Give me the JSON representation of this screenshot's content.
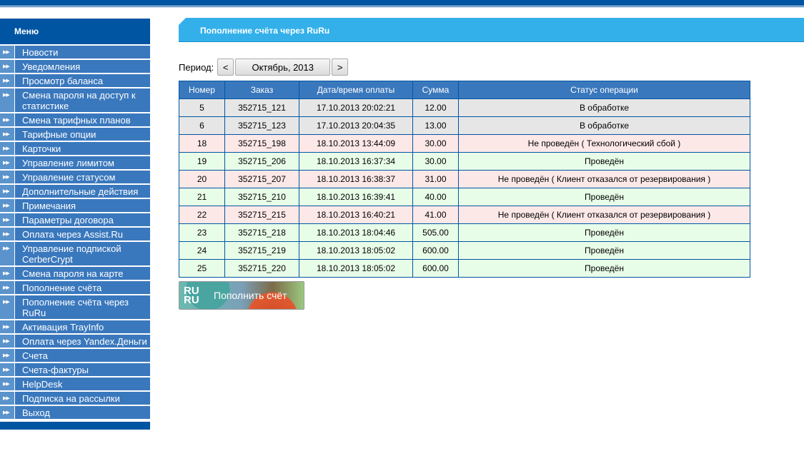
{
  "sidebar": {
    "title": "Меню",
    "items": [
      "Новости",
      "Уведомления",
      "Просмотр баланса",
      "Смена пароля на доступ к статистике",
      "Смена тарифных планов",
      "Тарифные опции",
      "Карточки",
      "Управление лимитом",
      "Управление статусом",
      "Дополнительные действия",
      "Примечания",
      "Параметры договора",
      "Оплата через Assist.Ru",
      "Управление подпиской CerberCrypt",
      "Смена пароля на карте",
      "Пополнение счёта",
      "Пополнение счёта через RuRu",
      "Активация TrayInfo",
      "Оплата через Yandex.Деньги",
      "Счета",
      "Счета-фактуры",
      "HelpDesk",
      "Подписка на рассылки",
      "Выход"
    ]
  },
  "page": {
    "title": "Пополнение счёта через RuRu"
  },
  "period": {
    "label": "Период:",
    "prev": "<",
    "value": "Октябрь, 2013",
    "next": ">"
  },
  "table": {
    "headers": [
      "Номер",
      "Заказ",
      "Дата/время оплаты",
      "Сумма",
      "Статус операции"
    ],
    "rows": [
      {
        "status_type": "gray",
        "cells": [
          "5",
          "352715_121",
          "17.10.2013 20:02:21",
          "12.00",
          "В обработке"
        ]
      },
      {
        "status_type": "gray",
        "cells": [
          "6",
          "352715_123",
          "17.10.2013 20:04:35",
          "13.00",
          "В обработке"
        ]
      },
      {
        "status_type": "pink",
        "cells": [
          "18",
          "352715_198",
          "18.10.2013 13:44:09",
          "30.00",
          "Не проведён ( Технологический сбой )"
        ]
      },
      {
        "status_type": "green",
        "cells": [
          "19",
          "352715_206",
          "18.10.2013 16:37:34",
          "30.00",
          "Проведён"
        ]
      },
      {
        "status_type": "pink",
        "cells": [
          "20",
          "352715_207",
          "18.10.2013 16:38:37",
          "31.00",
          "Не проведён ( Клиент отказался от резервирования )"
        ]
      },
      {
        "status_type": "green",
        "cells": [
          "21",
          "352715_210",
          "18.10.2013 16:39:41",
          "40.00",
          "Проведён"
        ]
      },
      {
        "status_type": "pink",
        "cells": [
          "22",
          "352715_215",
          "18.10.2013 16:40:21",
          "41.00",
          "Не проведён ( Клиент отказался от резервирования )"
        ]
      },
      {
        "status_type": "green",
        "cells": [
          "23",
          "352715_218",
          "18.10.2013 18:04:46",
          "505.00",
          "Проведён"
        ]
      },
      {
        "status_type": "green",
        "cells": [
          "24",
          "352715_219",
          "18.10.2013 18:05:02",
          "600.00",
          "Проведён"
        ]
      },
      {
        "status_type": "green",
        "cells": [
          "25",
          "352715_220",
          "18.10.2013 18:05:02",
          "600.00",
          "Проведён"
        ]
      }
    ]
  },
  "topup": {
    "logo": "RU RU",
    "label": "Пополнить счёт"
  },
  "colors": {
    "brand": "#0055a3",
    "menu_item": "#3a78bd",
    "banner": "#33b0ea",
    "row_pending": "#e6e6e6",
    "row_failed": "#fde8e8",
    "row_success": "#e8fde8"
  }
}
